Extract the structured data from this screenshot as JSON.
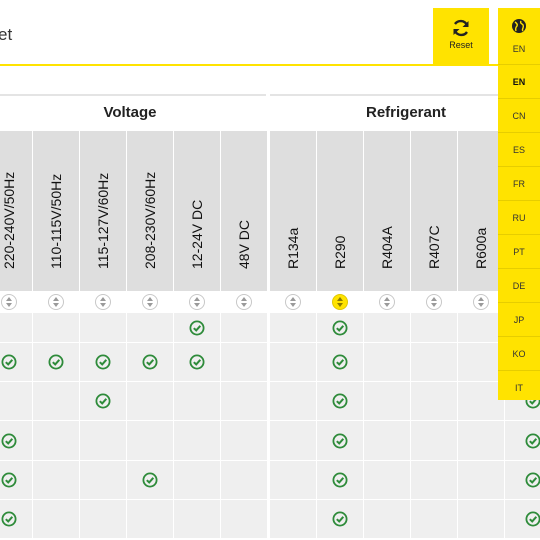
{
  "header": {
    "title_fragment": "et",
    "reset_label": "Reset"
  },
  "language": {
    "current": "EN",
    "options": [
      "EN",
      "CN",
      "ES",
      "FR",
      "RU",
      "PT",
      "DE",
      "JP",
      "KO",
      "IT"
    ],
    "selected": "EN"
  },
  "groups": {
    "voltage": "Voltage",
    "refrigerant": "Refrigerant"
  },
  "columns": [
    "220-240V/50Hz",
    "110-115V/50Hz",
    "115-127V/60Hz",
    "208-230V/60Hz",
    "12-24V DC",
    "48V DC",
    "R134a",
    "R290",
    "R404A",
    "R407C",
    "R600a"
  ],
  "active_sort_column": "R290",
  "rows": [
    [
      false,
      false,
      false,
      false,
      true,
      false,
      false,
      true,
      false,
      false,
      false
    ],
    [
      true,
      true,
      true,
      true,
      true,
      false,
      false,
      true,
      false,
      false,
      false
    ],
    [
      false,
      false,
      true,
      false,
      false,
      false,
      false,
      true,
      false,
      false,
      false
    ],
    [
      true,
      false,
      false,
      false,
      false,
      false,
      false,
      true,
      false,
      false,
      false
    ],
    [
      true,
      false,
      false,
      true,
      false,
      false,
      false,
      true,
      false,
      false,
      false
    ],
    [
      true,
      false,
      false,
      false,
      false,
      false,
      false,
      true,
      false,
      false,
      false
    ]
  ],
  "colors": {
    "accent": "#ffe300",
    "check": "#2e8b3a",
    "header_bg": "#dedede",
    "cell_bg": "#efefef"
  }
}
